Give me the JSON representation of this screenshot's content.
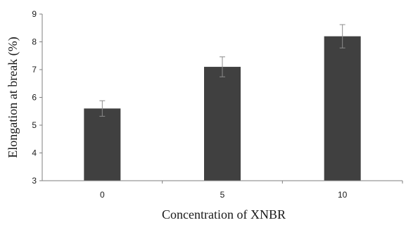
{
  "chart_data": {
    "type": "bar",
    "xlabel": "Concentration of XNBR",
    "ylabel": "Elongation at break (%)",
    "categories": [
      "0",
      "5",
      "10"
    ],
    "values": [
      5.6,
      7.1,
      8.2
    ],
    "errors": [
      0.28,
      0.36,
      0.42
    ],
    "ylim": [
      3,
      9
    ],
    "yticks": [
      "3",
      "4",
      "5",
      "6",
      "7",
      "8",
      "9"
    ],
    "grid": false,
    "colors": {
      "bar": "#404040",
      "axis": "#7f7f7f",
      "error_bar": "#8c8c8c"
    }
  }
}
